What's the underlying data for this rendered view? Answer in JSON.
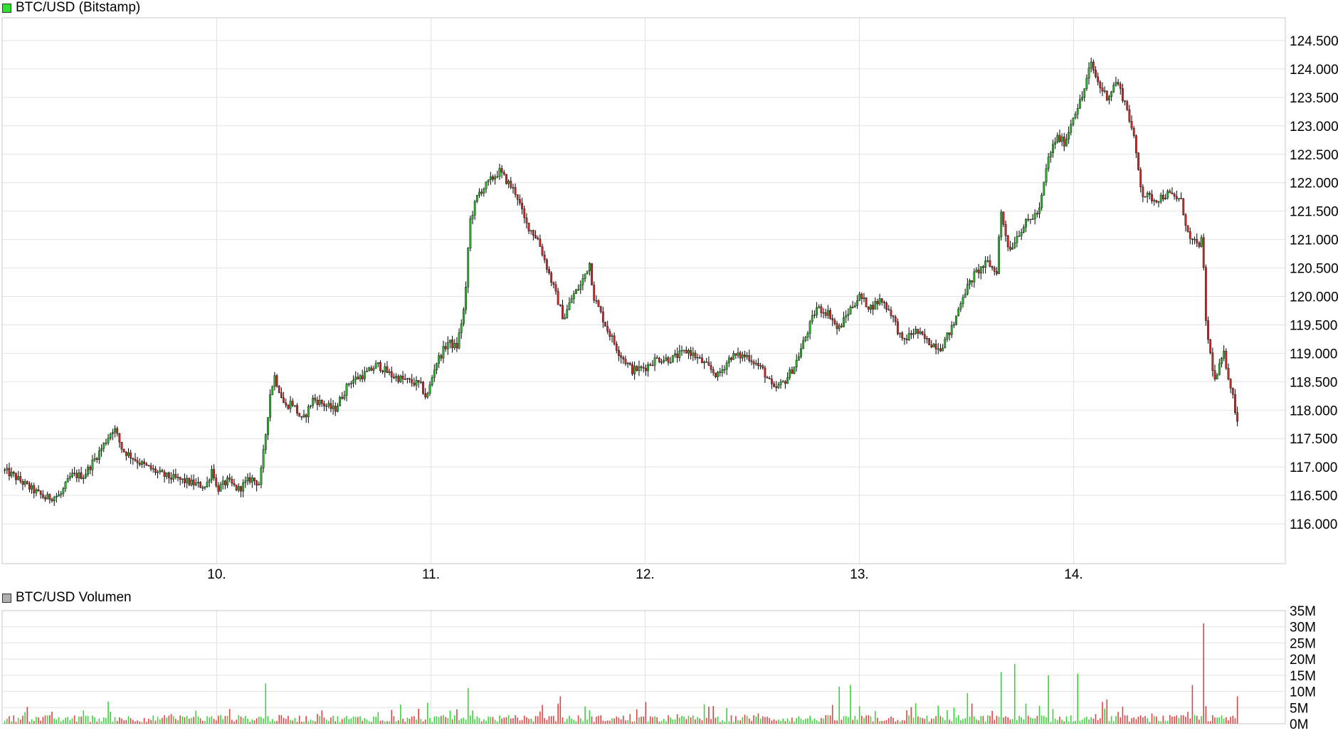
{
  "colors": {
    "up": "#2db22d",
    "down": "#cc2a2a",
    "grid": "#e2e2e2",
    "frame": "#c8c8c8",
    "wick": "#000000",
    "vol_up": "#3cd23c",
    "vol_down": "#dd4444",
    "legend_price": "#33dd33",
    "legend_volume": "#b0b0b0"
  },
  "chart_data": [
    {
      "type": "candlestick",
      "legend": "BTC/USD (Bitstamp)",
      "x_ticks": [
        "10.",
        "11.",
        "12.",
        "13.",
        "14."
      ],
      "x_range_days": [
        9.0,
        15.0
      ],
      "ylim": [
        115300,
        124900
      ],
      "y_ticks": [
        116000,
        116500,
        117000,
        117500,
        118000,
        118500,
        119000,
        119500,
        120000,
        120500,
        121000,
        121500,
        122000,
        122500,
        123000,
        123500,
        124000,
        124500
      ],
      "y_tick_labels": [
        "116.000",
        "116.500",
        "117.000",
        "117.500",
        "118.000",
        "118.500",
        "119.000",
        "119.500",
        "120.000",
        "120.500",
        "121.000",
        "121.500",
        "122.000",
        "122.500",
        "123.000",
        "123.500",
        "124.000",
        "124.500"
      ],
      "grid": true,
      "close_path": [
        [
          9.0,
          116950
        ],
        [
          9.05,
          116850
        ],
        [
          9.12,
          116650
        ],
        [
          9.2,
          116450
        ],
        [
          9.27,
          116500
        ],
        [
          9.32,
          116850
        ],
        [
          9.38,
          116850
        ],
        [
          9.45,
          117250
        ],
        [
          9.52,
          117700
        ],
        [
          9.56,
          117300
        ],
        [
          9.65,
          117050
        ],
        [
          9.75,
          116850
        ],
        [
          9.85,
          116750
        ],
        [
          9.95,
          116650
        ],
        [
          9.98,
          117000
        ],
        [
          10.0,
          116600
        ],
        [
          10.05,
          116750
        ],
        [
          10.1,
          116600
        ],
        [
          10.16,
          116800
        ],
        [
          10.2,
          116700
        ],
        [
          10.22,
          117300
        ],
        [
          10.25,
          118300
        ],
        [
          10.27,
          118600
        ],
        [
          10.32,
          118050
        ],
        [
          10.35,
          118150
        ],
        [
          10.4,
          117800
        ],
        [
          10.45,
          118200
        ],
        [
          10.55,
          118000
        ],
        [
          10.62,
          118500
        ],
        [
          10.7,
          118650
        ],
        [
          10.75,
          118800
        ],
        [
          10.82,
          118600
        ],
        [
          10.9,
          118500
        ],
        [
          10.95,
          118450
        ],
        [
          10.98,
          118200
        ],
        [
          11.02,
          118800
        ],
        [
          11.08,
          119200
        ],
        [
          11.12,
          119100
        ],
        [
          11.16,
          119900
        ],
        [
          11.18,
          121300
        ],
        [
          11.22,
          121800
        ],
        [
          11.28,
          122050
        ],
        [
          11.32,
          122200
        ],
        [
          11.36,
          122000
        ],
        [
          11.4,
          121800
        ],
        [
          11.44,
          121300
        ],
        [
          11.5,
          121000
        ],
        [
          11.56,
          120300
        ],
        [
          11.62,
          119600
        ],
        [
          11.66,
          120000
        ],
        [
          11.7,
          120200
        ],
        [
          11.74,
          120600
        ],
        [
          11.76,
          120000
        ],
        [
          11.82,
          119450
        ],
        [
          11.88,
          119000
        ],
        [
          11.94,
          118700
        ],
        [
          12.0,
          118750
        ],
        [
          12.05,
          118900
        ],
        [
          12.12,
          118900
        ],
        [
          12.2,
          119050
        ],
        [
          12.28,
          118800
        ],
        [
          12.34,
          118600
        ],
        [
          12.4,
          118950
        ],
        [
          12.48,
          118950
        ],
        [
          12.55,
          118700
        ],
        [
          12.6,
          118350
        ],
        [
          12.65,
          118500
        ],
        [
          12.7,
          118800
        ],
        [
          12.75,
          119300
        ],
        [
          12.8,
          119800
        ],
        [
          12.86,
          119700
        ],
        [
          12.9,
          119400
        ],
        [
          12.96,
          119800
        ],
        [
          13.0,
          120000
        ],
        [
          13.05,
          119800
        ],
        [
          13.1,
          119950
        ],
        [
          13.15,
          119700
        ],
        [
          13.2,
          119200
        ],
        [
          13.26,
          119400
        ],
        [
          13.32,
          119200
        ],
        [
          13.38,
          119100
        ],
        [
          13.44,
          119500
        ],
        [
          13.48,
          120000
        ],
        [
          13.54,
          120400
        ],
        [
          13.6,
          120600
        ],
        [
          13.64,
          120400
        ],
        [
          13.66,
          121500
        ],
        [
          13.7,
          120800
        ],
        [
          13.74,
          121100
        ],
        [
          13.78,
          121300
        ],
        [
          13.84,
          121500
        ],
        [
          13.88,
          122400
        ],
        [
          13.92,
          122800
        ],
        [
          13.96,
          122700
        ],
        [
          14.0,
          123200
        ],
        [
          14.04,
          123500
        ],
        [
          14.08,
          124100
        ],
        [
          14.12,
          123700
        ],
        [
          14.16,
          123500
        ],
        [
          14.2,
          123800
        ],
        [
          14.25,
          123300
        ],
        [
          14.28,
          122800
        ],
        [
          14.32,
          121800
        ],
        [
          14.38,
          121700
        ],
        [
          14.44,
          121800
        ],
        [
          14.5,
          121700
        ],
        [
          14.54,
          121000
        ],
        [
          14.58,
          120900
        ],
        [
          14.6,
          121000
        ],
        [
          14.62,
          119400
        ],
        [
          14.66,
          118500
        ],
        [
          14.7,
          119000
        ],
        [
          14.74,
          118300
        ],
        [
          14.77,
          117700
        ]
      ]
    },
    {
      "type": "bar",
      "legend": "BTC/USD Volumen",
      "ylim": [
        0,
        35
      ],
      "y_ticks": [
        0,
        5,
        10,
        15,
        20,
        25,
        30,
        35
      ],
      "y_tick_labels": [
        "0M",
        "5M",
        "10M",
        "15M",
        "20M",
        "25M",
        "30M",
        "35M"
      ],
      "unit": "M",
      "baseline_millions": 1.8,
      "spikes": [
        [
          10.23,
          12.5
        ],
        [
          11.17,
          11.0
        ],
        [
          11.6,
          8.5
        ],
        [
          12.91,
          11.5
        ],
        [
          12.96,
          12.0
        ],
        [
          13.5,
          9.5
        ],
        [
          13.66,
          16.0
        ],
        [
          13.73,
          18.5
        ],
        [
          13.88,
          15.0
        ],
        [
          14.02,
          15.5
        ],
        [
          14.16,
          7.5
        ],
        [
          14.55,
          12.0
        ],
        [
          14.61,
          31.0
        ],
        [
          14.76,
          8.5
        ]
      ]
    }
  ]
}
